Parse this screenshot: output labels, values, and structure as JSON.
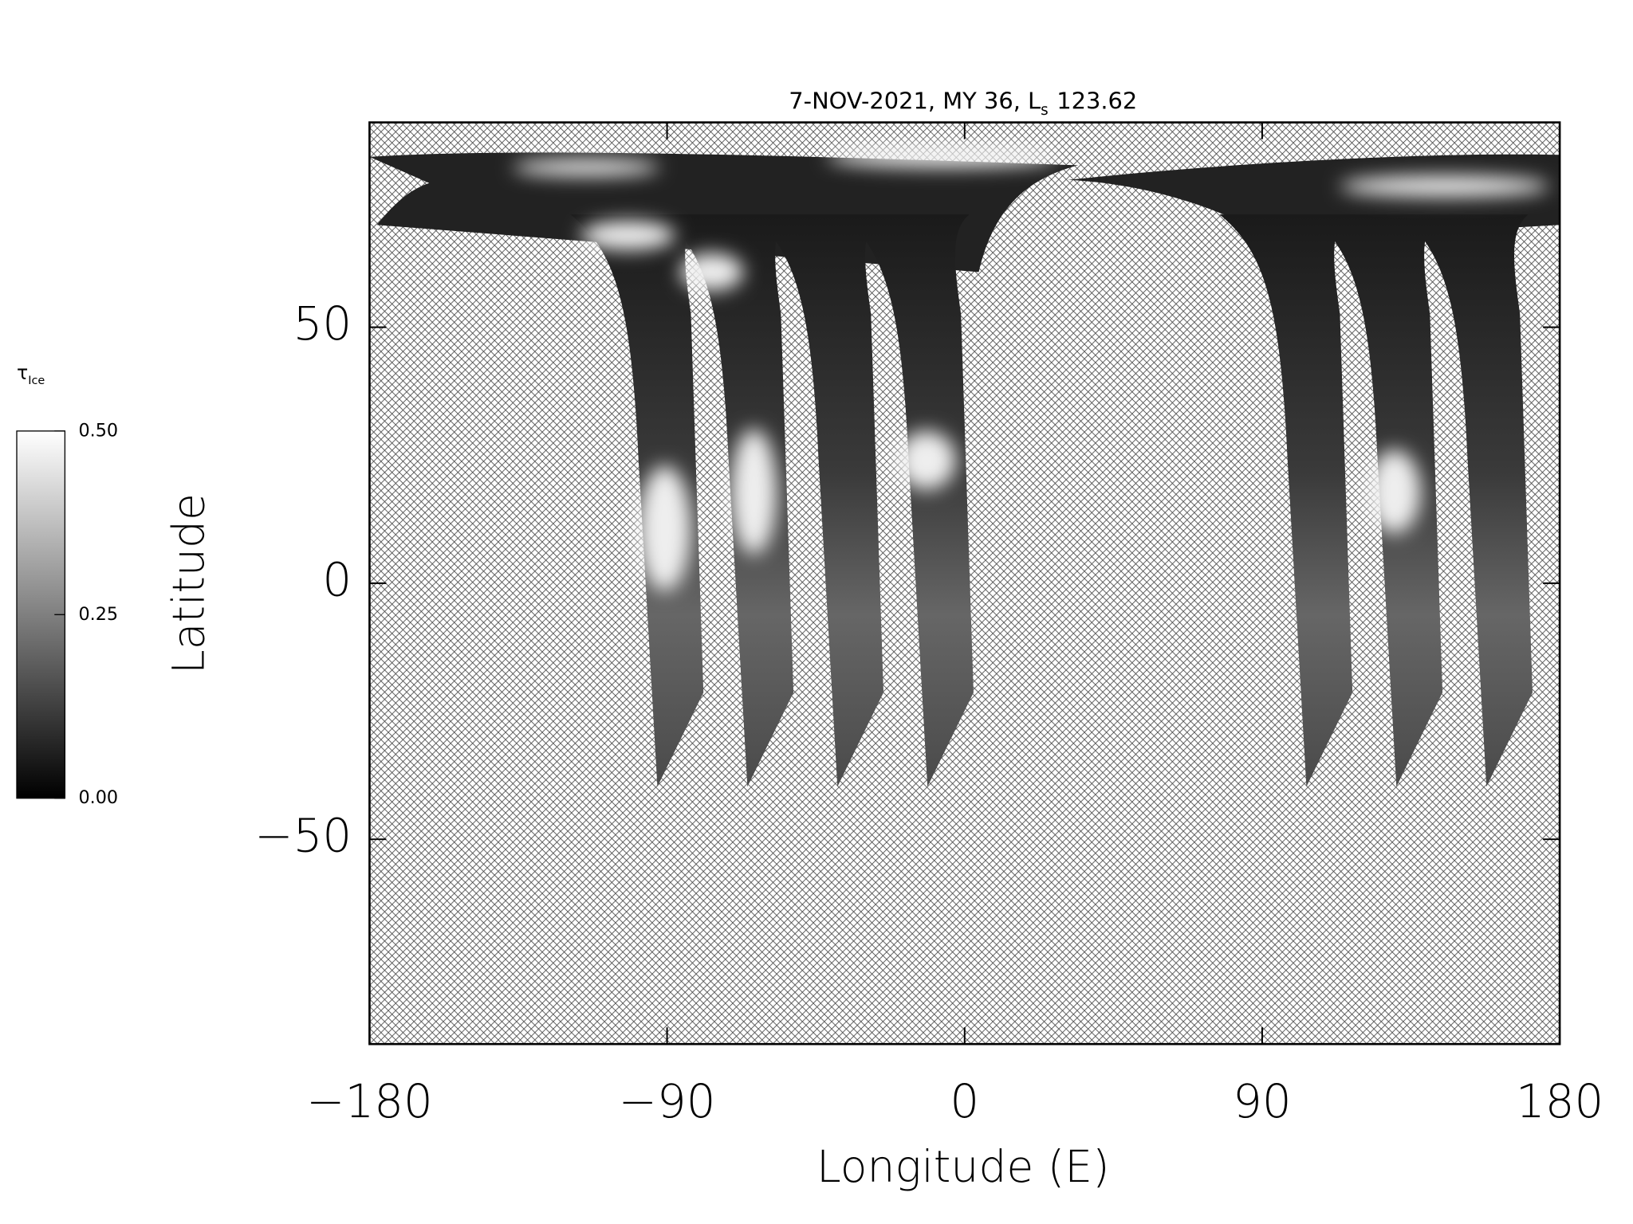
{
  "chart_data": {
    "type": "map",
    "title_prefix": "7-NOV-2021, MY 36,  L",
    "title_subscript": "s",
    "title_suffix": "123.62",
    "xlabel": "Longitude (E)",
    "ylabel": "Latitude",
    "xlim": [
      -180,
      180
    ],
    "ylim": [
      -90,
      90
    ],
    "xticks": [
      {
        "value": -180,
        "label": "−180"
      },
      {
        "value": -90,
        "label": "−90"
      },
      0,
      90,
      180
    ],
    "yticks": [
      {
        "value": -50,
        "label": "−50"
      },
      0,
      50
    ],
    "colorbar": {
      "label": "τ",
      "label_subscript": "Ice",
      "clim": [
        0,
        0.5
      ],
      "ticks": [
        {
          "value": 0,
          "label": "0.00"
        },
        {
          "value": 0.25,
          "label": "0.25"
        },
        {
          "value": 0.5,
          "label": "0.50"
        }
      ]
    }
  }
}
